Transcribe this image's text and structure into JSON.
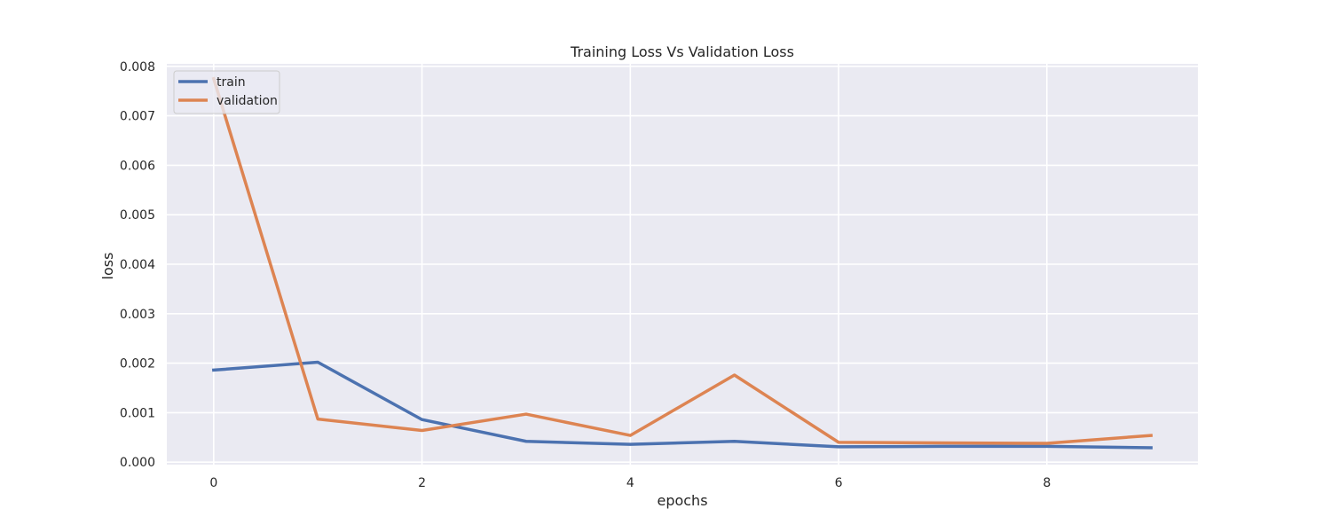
{
  "chart_data": {
    "type": "line",
    "title": "Training Loss Vs Validation Loss",
    "xlabel": "epochs",
    "ylabel": "loss",
    "x": [
      0,
      1,
      2,
      3,
      4,
      5,
      6,
      7,
      8,
      9
    ],
    "xlim": [
      -0.45,
      9.45
    ],
    "ylim": [
      -5e-05,
      0.00805
    ],
    "xticks": [
      0,
      2,
      4,
      6,
      8
    ],
    "yticks": [
      0.0,
      0.001,
      0.002,
      0.003,
      0.004,
      0.005,
      0.006,
      0.007,
      0.008
    ],
    "ytick_labels": [
      "0.000",
      "0.001",
      "0.002",
      "0.003",
      "0.004",
      "0.005",
      "0.006",
      "0.007",
      "0.008"
    ],
    "grid": true,
    "legend_position": "top-left",
    "series": [
      {
        "name": "train",
        "color": "#4c72b0",
        "values": [
          0.00186,
          0.00202,
          0.00086,
          0.00042,
          0.00036,
          0.00042,
          0.00031,
          0.00032,
          0.00032,
          0.00029
        ]
      },
      {
        "name": "validation",
        "color": "#dd8452",
        "values": [
          0.00775,
          0.00087,
          0.00064,
          0.00097,
          0.00054,
          0.00176,
          0.0004,
          0.00039,
          0.00038,
          0.00054
        ]
      }
    ]
  }
}
